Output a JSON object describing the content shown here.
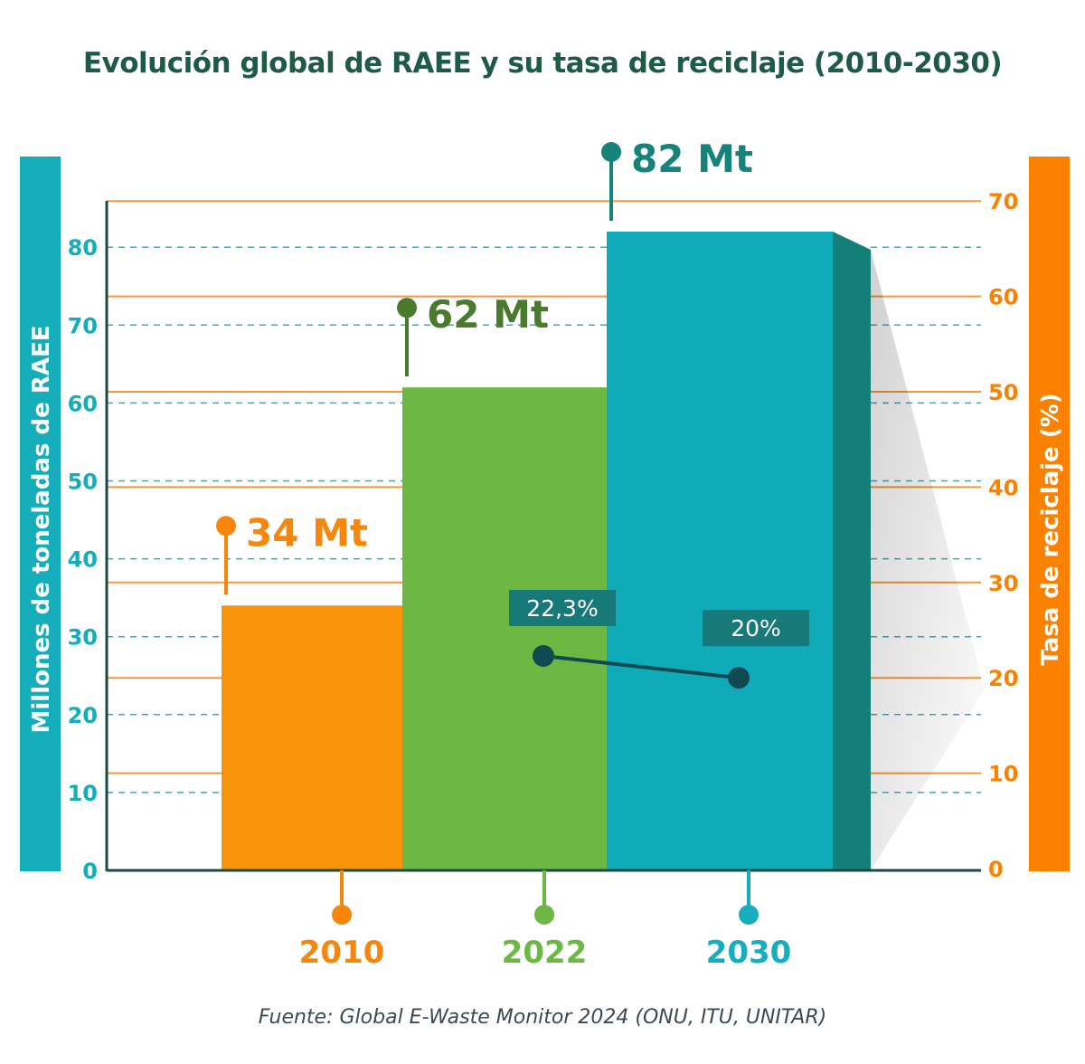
{
  "chart_data": {
    "type": "bar",
    "title": "Evolución global de RAEE y su tasa de reciclaje (2010-2030)",
    "categories": [
      "2010",
      "2022",
      "2030"
    ],
    "series": [
      {
        "name": "Millones de toneladas de RAEE",
        "axis": "left",
        "type": "bar",
        "values": [
          34,
          62,
          82
        ],
        "labels": [
          "34 Mt",
          "62 Mt",
          "82 Mt"
        ]
      },
      {
        "name": "Tasa de reciclaje (%)",
        "axis": "right",
        "type": "line",
        "x": [
          "2022",
          "2030"
        ],
        "values": [
          22.3,
          20
        ],
        "labels": [
          "22,3%",
          "20%"
        ]
      }
    ],
    "ylabel": "Millones de toneladas de RAEE",
    "ylim": [
      0,
      90
    ],
    "yticks": [
      "0",
      "10",
      "20",
      "30",
      "40",
      "50",
      "60",
      "70",
      "80"
    ],
    "y2label": "Tasa de reciclaje (%)",
    "y2lim": [
      0,
      70
    ],
    "y2ticks": [
      "0",
      "10",
      "20",
      "30",
      "40",
      "50",
      "60",
      "70"
    ],
    "grid": true,
    "source": "Fuente: Global E-Waste Monitor 2024 (ONU, ITU, UNITAR)",
    "colors": {
      "bars": [
        "#f7940c",
        "#6cb843",
        "#0fabb8"
      ],
      "bar_sides": [
        "#ea8205",
        "#4f8232",
        "#147f78"
      ],
      "label_colors": [
        "#f7860c",
        "#4a7a2e",
        "#16837b"
      ],
      "year_colors": [
        "#f7860c",
        "#6cb843",
        "#16aebd"
      ],
      "left_axis": "#14adb9",
      "right_axis": "#fb8200",
      "line": "#0f4a52",
      "rate_box": "#177a78"
    }
  }
}
